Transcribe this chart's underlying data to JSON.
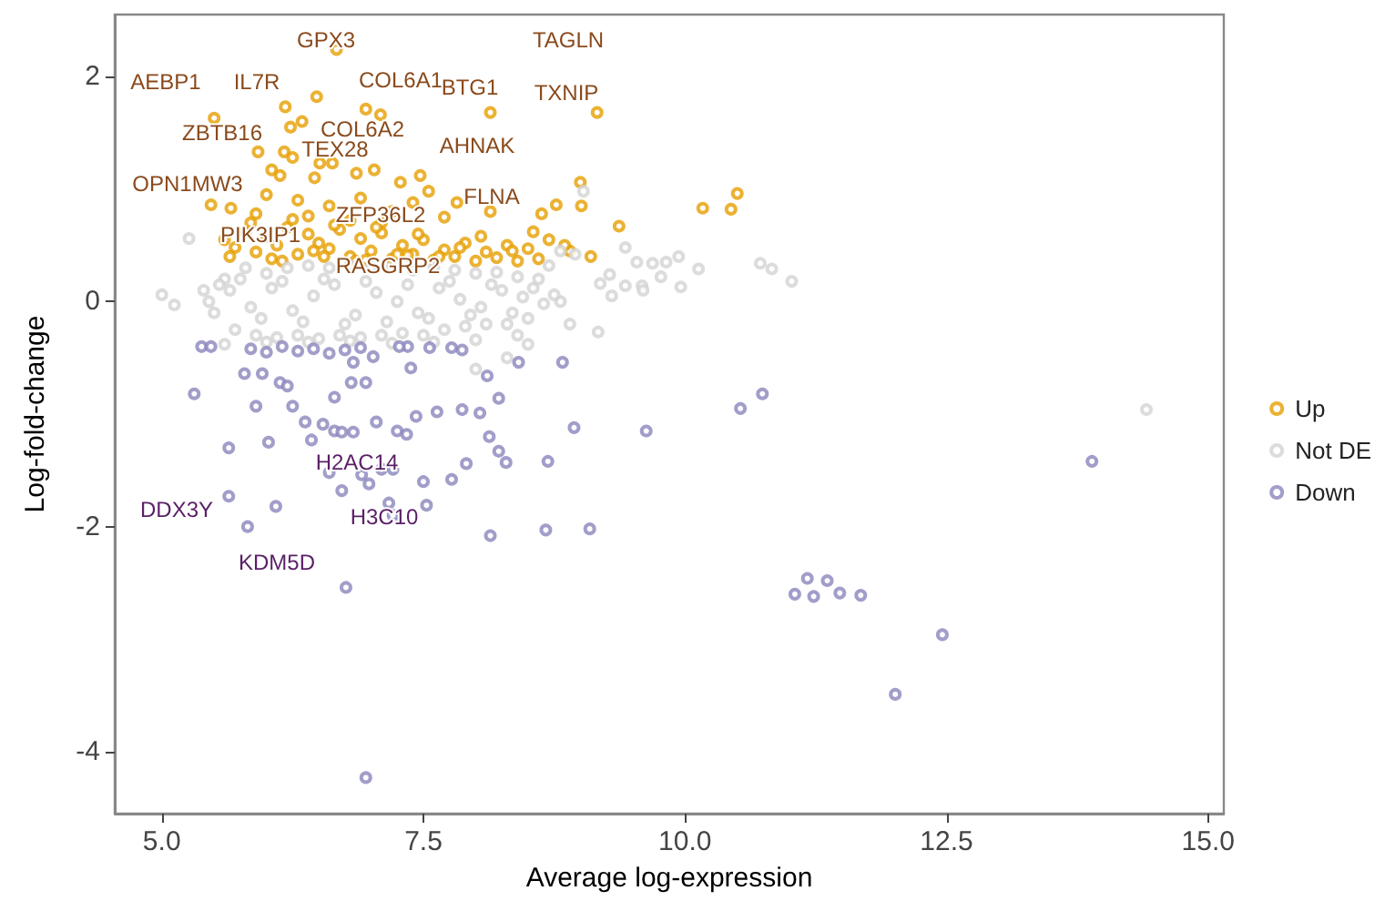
{
  "chart_data": {
    "type": "scatter",
    "xlabel": "Average log-expression",
    "ylabel": "Log-fold-change",
    "xlim": [
      4.55,
      15.15
    ],
    "ylim": [
      -4.55,
      2.55
    ],
    "xticks": [
      {
        "value": 5,
        "label": "5.0"
      },
      {
        "value": 7.5,
        "label": "7.5"
      },
      {
        "value": 10,
        "label": "10.0"
      },
      {
        "value": 12.5,
        "label": "12.5"
      },
      {
        "value": 15,
        "label": "15.0"
      }
    ],
    "yticks": [
      -4,
      -2,
      0,
      2
    ],
    "grid": false,
    "legend": "right",
    "marker": "circle",
    "series": [
      {
        "name": "Up",
        "color": "#e69f00",
        "x": [
          6.67,
          6.48,
          6.18,
          6.34,
          6.23,
          5.5,
          6.95,
          7.09,
          8.14,
          9.16,
          5.92,
          6.17,
          6.25,
          6.51,
          6.63,
          6.05,
          6.13,
          6.46,
          6.86,
          7.03,
          7.47,
          7.28,
          9.0,
          5.47,
          5.66,
          7.55,
          7.82,
          8.14,
          8.63,
          8.77,
          9.01,
          10.17,
          9.37,
          10.5,
          10.44,
          6.0,
          6.3,
          6.6,
          6.9,
          7.2,
          7.4,
          7.7,
          5.9,
          6.4,
          6.8,
          7.1,
          5.6,
          5.7,
          5.8,
          5.9,
          6.0,
          6.1,
          6.2,
          6.3,
          6.4,
          6.5,
          6.6,
          6.7,
          6.8,
          6.9,
          7.0,
          7.1,
          7.2,
          7.3,
          7.4,
          7.5,
          7.6,
          7.7,
          7.8,
          7.9,
          8.0,
          8.1,
          8.2,
          8.3,
          8.4,
          8.5,
          8.6,
          8.7,
          8.9,
          9.1,
          5.65,
          5.85,
          6.05,
          6.25,
          6.45,
          6.65,
          6.85,
          7.05,
          7.25,
          7.45,
          7.65,
          7.85,
          8.05,
          8.35,
          8.55,
          8.85,
          6.15,
          6.55,
          6.95,
          7.35
        ],
        "values": [
          2.24,
          1.82,
          1.73,
          1.6,
          1.55,
          1.63,
          1.71,
          1.66,
          1.68,
          1.68,
          1.33,
          1.33,
          1.28,
          1.23,
          1.23,
          1.17,
          1.12,
          1.1,
          1.14,
          1.17,
          1.12,
          1.06,
          1.06,
          0.86,
          0.83,
          0.98,
          0.88,
          0.8,
          0.78,
          0.86,
          0.85,
          0.83,
          0.67,
          0.96,
          0.82,
          0.95,
          0.9,
          0.85,
          0.92,
          0.8,
          0.88,
          0.75,
          0.78,
          0.76,
          0.72,
          0.7,
          0.55,
          0.48,
          0.62,
          0.44,
          0.58,
          0.5,
          0.66,
          0.42,
          0.6,
          0.52,
          0.47,
          0.64,
          0.4,
          0.56,
          0.45,
          0.61,
          0.38,
          0.5,
          0.42,
          0.55,
          0.37,
          0.46,
          0.4,
          0.52,
          0.36,
          0.44,
          0.39,
          0.5,
          0.36,
          0.47,
          0.38,
          0.55,
          0.45,
          0.4,
          0.4,
          0.7,
          0.38,
          0.73,
          0.45,
          0.68,
          0.36,
          0.66,
          0.42,
          0.6,
          0.4,
          0.48,
          0.58,
          0.45,
          0.62,
          0.5,
          0.36,
          0.4,
          0.37,
          0.41
        ]
      },
      {
        "name": "Not DE",
        "color": "#d3d3d3",
        "x": [
          8.81,
          8.95,
          9.43,
          9.54,
          9.69,
          9.82,
          9.94,
          10.13,
          10.72,
          10.83,
          11.02,
          9.19,
          9.43,
          9.59,
          9.77,
          9.96,
          9.28,
          8.81,
          9.17,
          9.03,
          5.0,
          5.12,
          5.26,
          14.41,
          5.4,
          5.5,
          5.6,
          5.7,
          5.8,
          5.9,
          6.0,
          6.1,
          6.2,
          6.3,
          6.4,
          6.5,
          6.6,
          6.7,
          6.8,
          6.9,
          7.0,
          7.1,
          7.2,
          7.3,
          7.4,
          7.5,
          7.6,
          7.7,
          7.8,
          7.9,
          8.0,
          8.1,
          8.2,
          8.3,
          8.4,
          8.5,
          8.6,
          5.45,
          5.65,
          5.85,
          6.05,
          6.25,
          6.45,
          6.65,
          6.85,
          7.05,
          7.25,
          7.45,
          7.65,
          7.85,
          8.05,
          8.25,
          8.45,
          8.65,
          5.55,
          5.75,
          5.95,
          6.15,
          6.35,
          6.55,
          6.75,
          6.95,
          7.15,
          7.35,
          7.55,
          7.75,
          7.95,
          8.15,
          8.35,
          8.55,
          8.75,
          5.6,
          6.0,
          6.4,
          6.8,
          7.2,
          7.6,
          8.0,
          8.4,
          8.9,
          9.3,
          9.6,
          8.7,
          8.5,
          8.3,
          8.0
        ],
        "values": [
          0.45,
          0.42,
          0.48,
          0.35,
          0.34,
          0.35,
          0.4,
          0.29,
          0.34,
          0.29,
          0.18,
          0.16,
          0.14,
          0.14,
          0.22,
          0.13,
          0.24,
          0.0,
          -0.27,
          0.98,
          0.06,
          -0.03,
          0.56,
          -0.96,
          0.1,
          -0.1,
          0.2,
          -0.25,
          0.3,
          -0.3,
          0.25,
          -0.32,
          0.3,
          -0.3,
          0.32,
          -0.33,
          0.3,
          -0.3,
          0.32,
          -0.32,
          0.3,
          -0.3,
          0.3,
          -0.28,
          0.28,
          -0.3,
          0.3,
          -0.25,
          0.28,
          -0.22,
          0.25,
          -0.2,
          0.26,
          -0.2,
          0.22,
          -0.15,
          0.2,
          0.0,
          0.1,
          -0.05,
          0.12,
          -0.08,
          0.05,
          0.15,
          -0.12,
          0.08,
          0.0,
          -0.1,
          0.12,
          0.02,
          -0.05,
          0.1,
          0.04,
          -0.02,
          0.15,
          0.2,
          -0.15,
          0.18,
          -0.18,
          0.2,
          -0.2,
          0.18,
          -0.18,
          0.15,
          -0.15,
          0.18,
          -0.12,
          0.15,
          -0.1,
          0.12,
          0.06,
          -0.38,
          -0.36,
          -0.36,
          -0.35,
          -0.37,
          -0.36,
          -0.34,
          -0.3,
          -0.2,
          0.05,
          0.1,
          0.32,
          -0.38,
          -0.5,
          -0.6
        ]
      },
      {
        "name": "Down",
        "color": "#8a86bd",
        "x": [
          5.31,
          5.64,
          5.64,
          5.82,
          6.02,
          6.09,
          6.76,
          5.9,
          5.79,
          5.96,
          6.13,
          6.2,
          6.25,
          6.37,
          6.43,
          6.54,
          6.65,
          6.72,
          6.83,
          6.6,
          6.72,
          6.91,
          6.98,
          7.1,
          7.21,
          7.17,
          7.21,
          7.53,
          7.5,
          7.77,
          7.25,
          7.34,
          7.05,
          7.43,
          7.63,
          7.87,
          8.04,
          8.13,
          8.22,
          8.29,
          7.91,
          8.22,
          8.11,
          7.87,
          7.77,
          7.56,
          7.35,
          7.27,
          7.38,
          7.02,
          6.83,
          6.65,
          6.81,
          6.95,
          8.41,
          8.83,
          8.69,
          8.94,
          9.63,
          8.14,
          8.67,
          9.09,
          5.38,
          5.47,
          5.85,
          6.0,
          6.15,
          6.3,
          6.45,
          6.6,
          6.75,
          6.9,
          10.53,
          10.74,
          13.89,
          11.17,
          11.05,
          11.48,
          11.36,
          11.23,
          11.68,
          12.46,
          12.01,
          6.95
        ],
        "values": [
          -0.82,
          -1.3,
          -1.73,
          -2.0,
          -1.25,
          -1.82,
          -2.54,
          -0.93,
          -0.64,
          -0.64,
          -0.72,
          -0.75,
          -0.93,
          -1.07,
          -1.23,
          -1.09,
          -1.15,
          -1.16,
          -1.16,
          -1.52,
          -1.68,
          -1.54,
          -1.62,
          -1.49,
          -1.49,
          -1.79,
          -1.9,
          -1.81,
          -1.6,
          -1.58,
          -1.15,
          -1.18,
          -1.07,
          -1.02,
          -0.98,
          -0.96,
          -0.99,
          -1.2,
          -1.33,
          -1.43,
          -1.44,
          -0.86,
          -0.66,
          -0.43,
          -0.41,
          -0.41,
          -0.4,
          -0.4,
          -0.59,
          -0.49,
          -0.54,
          -0.85,
          -0.72,
          -0.72,
          -0.54,
          -0.54,
          -1.42,
          -1.12,
          -1.15,
          -2.08,
          -2.03,
          -2.02,
          -0.4,
          -0.4,
          -0.42,
          -0.45,
          -0.4,
          -0.44,
          -0.42,
          -0.46,
          -0.43,
          -0.41,
          -0.95,
          -0.82,
          -1.42,
          -2.46,
          -2.6,
          -2.59,
          -2.48,
          -2.62,
          -2.61,
          -2.96,
          -3.49,
          -4.23
        ]
      }
    ],
    "annotations": [
      "GPX3",
      "TAGLN",
      "AEBP1",
      "IL7R",
      "COL6A1",
      "BTG1",
      "TXNIP",
      "ZBTB16",
      "COL6A2",
      "TEX28",
      "AHNAK",
      "OPN1MW3",
      "FLNA",
      "ZFP36L2",
      "PIK3IP1",
      "RASGRP2",
      "H2AC14",
      "DDX3Y",
      "H3C10",
      "KDM5D"
    ]
  }
}
